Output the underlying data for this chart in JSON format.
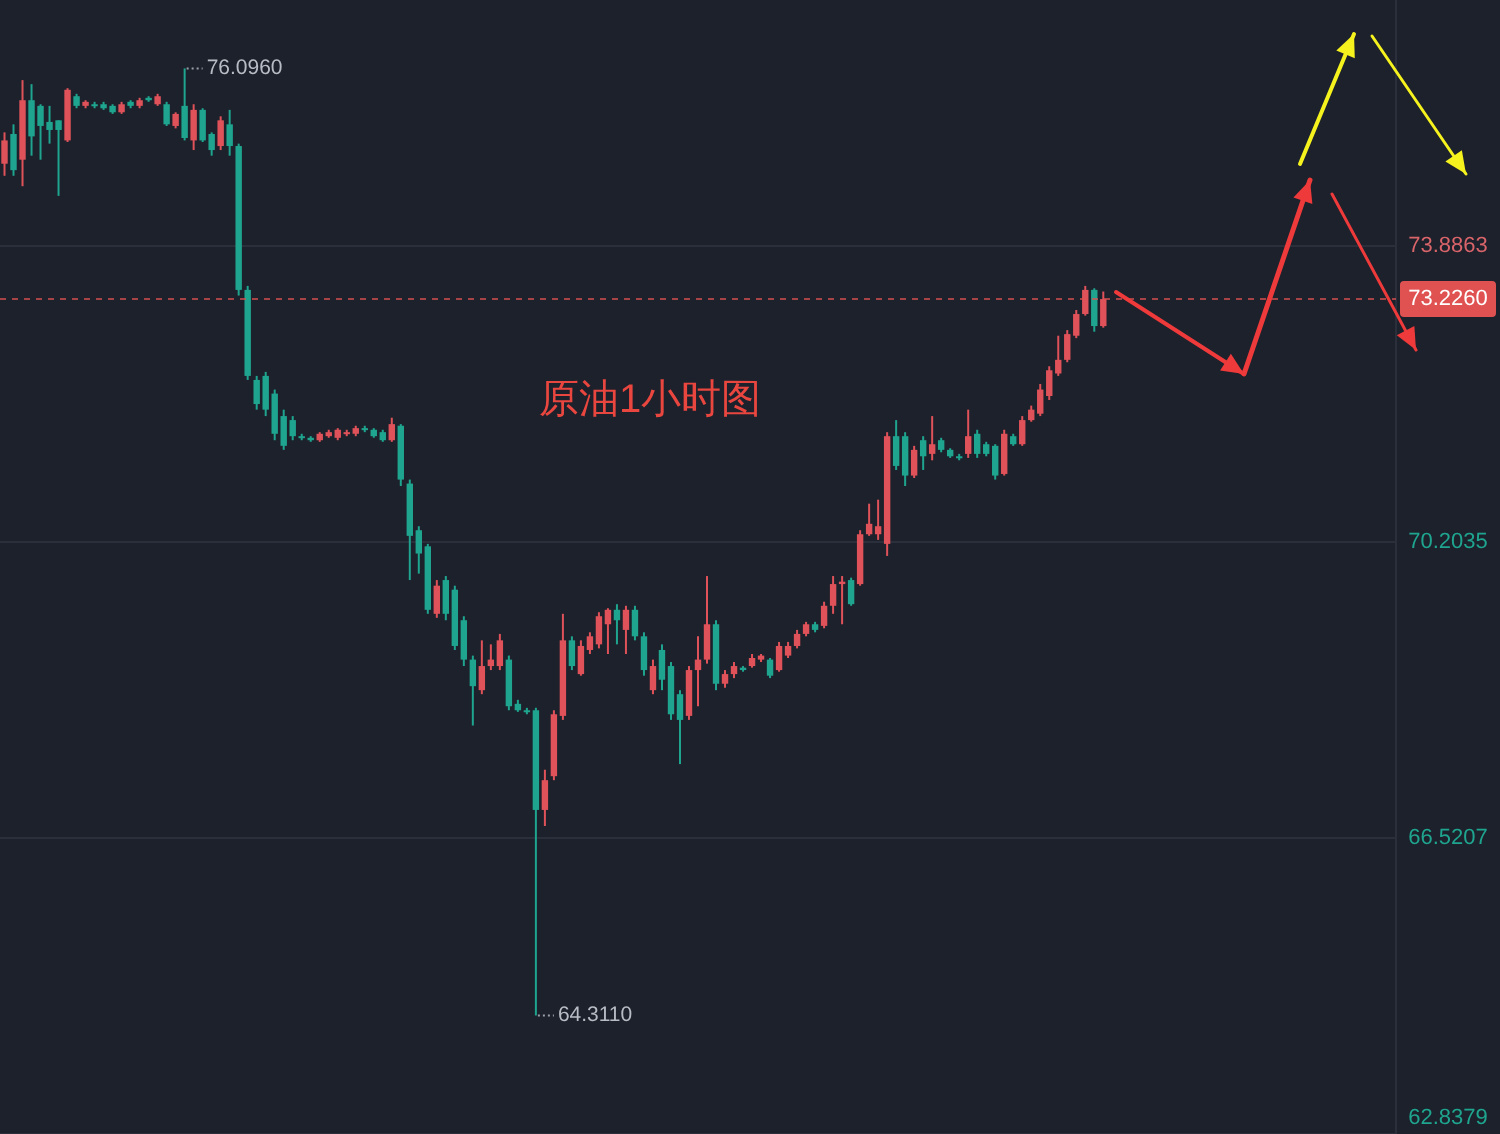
{
  "chart_data": {
    "type": "candlestick",
    "title": "原油1小时图",
    "tick_labels": "y",
    "grid": "y",
    "ylim": [
      62.8379,
      76.947
    ],
    "yticks": [
      62.8379,
      66.5207,
      70.2035,
      73.8863
    ],
    "ref_lines": [
      {
        "axis": "y",
        "value": 73.226,
        "label": "73.2260",
        "color": "#e05252",
        "line_style": "dashed"
      }
    ],
    "annotations": [
      "76.0960",
      "64.3110"
    ],
    "categories": [
      null,
      null,
      null,
      null,
      null,
      null,
      null,
      null,
      null,
      null,
      null,
      null,
      null,
      null,
      null,
      null,
      null,
      null,
      null,
      null,
      null,
      null,
      null,
      null,
      null,
      null,
      null,
      null,
      null,
      null,
      null,
      null,
      null,
      null,
      null,
      null,
      null,
      null,
      null,
      null,
      null,
      null,
      null,
      null,
      null,
      null,
      null,
      null,
      null,
      null,
      null,
      null,
      null,
      null,
      null,
      null,
      null,
      null,
      null,
      null,
      null,
      null,
      null,
      null,
      null,
      null,
      null,
      null,
      null,
      null,
      null,
      null,
      null,
      null,
      null,
      null,
      null,
      null,
      null,
      null,
      null,
      null,
      null,
      null,
      null,
      null,
      null,
      null,
      null,
      null,
      null,
      null,
      null,
      null,
      null,
      null,
      null,
      null,
      null,
      null,
      null,
      null,
      null,
      null,
      null,
      null,
      null,
      null,
      null,
      null,
      null,
      null,
      null,
      null,
      null,
      null,
      null,
      null,
      null,
      null,
      null,
      null,
      null,
      null,
      null,
      null,
      null,
      null,
      null,
      null,
      null,
      null,
      null,
      null,
      null,
      null,
      null,
      null,
      null,
      null,
      null,
      null,
      null,
      null,
      null,
      null,
      null,
      null,
      null,
      null,
      null,
      null,
      null,
      null,
      null
    ],
    "ohlc": [
      [
        74.91,
        75.3,
        74.76,
        75.2
      ],
      [
        75.28,
        75.4,
        74.76,
        74.83
      ],
      [
        74.96,
        75.95,
        74.63,
        75.7
      ],
      [
        75.7,
        75.9,
        75.01,
        75.25
      ],
      [
        75.63,
        75.65,
        74.96,
        75.38
      ],
      [
        75.43,
        75.63,
        75.16,
        75.33
      ],
      [
        75.45,
        75.45,
        74.51,
        75.33
      ],
      [
        75.2,
        75.85,
        75.18,
        75.83
      ],
      [
        75.75,
        75.78,
        75.6,
        75.63
      ],
      [
        75.63,
        75.7,
        75.6,
        75.68
      ],
      [
        75.65,
        75.68,
        75.6,
        75.63
      ],
      [
        75.65,
        75.68,
        75.58,
        75.6
      ],
      [
        75.63,
        75.65,
        75.53,
        75.55
      ],
      [
        75.55,
        75.68,
        75.53,
        75.65
      ],
      [
        75.68,
        75.7,
        75.6,
        75.63
      ],
      [
        75.63,
        75.73,
        75.6,
        75.7
      ],
      [
        75.73,
        75.75,
        75.68,
        75.7
      ],
      [
        75.65,
        75.78,
        75.63,
        75.75
      ],
      [
        75.65,
        75.68,
        75.38,
        75.4
      ],
      [
        75.38,
        75.55,
        75.35,
        75.53
      ],
      [
        75.63,
        76.096,
        75.2,
        75.23
      ],
      [
        75.2,
        75.65,
        75.08,
        75.58
      ],
      [
        75.58,
        75.6,
        75.18,
        75.2
      ],
      [
        75.28,
        75.3,
        75.01,
        75.08
      ],
      [
        75.13,
        75.5,
        75.08,
        75.45
      ],
      [
        75.4,
        75.58,
        75.01,
        75.13
      ],
      [
        75.13,
        75.16,
        73.27,
        73.34
      ],
      [
        73.34,
        73.39,
        72.22,
        72.27
      ],
      [
        72.22,
        72.27,
        71.85,
        71.92
      ],
      [
        72.27,
        72.32,
        71.77,
        71.85
      ],
      [
        72.05,
        72.1,
        71.47,
        71.55
      ],
      [
        71.77,
        71.85,
        71.35,
        71.4
      ],
      [
        71.72,
        71.77,
        71.47,
        71.52
      ],
      [
        71.52,
        71.55,
        71.47,
        71.5
      ],
      [
        71.5,
        71.52,
        71.45,
        71.47
      ],
      [
        71.47,
        71.57,
        71.45,
        71.55
      ],
      [
        71.52,
        71.6,
        71.5,
        71.57
      ],
      [
        71.5,
        71.62,
        71.47,
        71.6
      ],
      [
        71.55,
        71.6,
        71.52,
        71.57
      ],
      [
        71.55,
        71.65,
        71.52,
        71.62
      ],
      [
        71.62,
        71.65,
        71.57,
        71.6
      ],
      [
        71.6,
        71.62,
        71.5,
        71.52
      ],
      [
        71.57,
        71.6,
        71.45,
        71.47
      ],
      [
        71.47,
        71.75,
        71.45,
        71.67
      ],
      [
        71.65,
        71.67,
        70.9,
        70.98
      ],
      [
        70.93,
        70.98,
        69.73,
        70.28
      ],
      [
        70.35,
        70.4,
        69.81,
        70.06
      ],
      [
        70.15,
        70.18,
        69.31,
        69.36
      ],
      [
        69.31,
        69.73,
        69.26,
        69.66
      ],
      [
        69.73,
        69.78,
        69.23,
        69.31
      ],
      [
        69.61,
        69.66,
        68.86,
        68.91
      ],
      [
        69.23,
        69.28,
        68.66,
        68.74
      ],
      [
        68.74,
        68.79,
        67.92,
        68.41
      ],
      [
        68.36,
        68.98,
        68.31,
        68.66
      ],
      [
        68.66,
        68.93,
        68.61,
        68.74
      ],
      [
        68.66,
        69.06,
        68.61,
        68.98
      ],
      [
        68.74,
        68.79,
        68.11,
        68.16
      ],
      [
        68.19,
        68.24,
        68.09,
        68.11
      ],
      [
        68.11,
        68.14,
        68.06,
        68.09
      ],
      [
        68.11,
        68.14,
        64.311,
        66.87
      ],
      [
        66.87,
        67.37,
        66.67,
        67.24
      ],
      [
        67.29,
        68.11,
        67.24,
        68.06
      ],
      [
        68.04,
        69.31,
        67.99,
        68.98
      ],
      [
        68.98,
        69.03,
        68.61,
        68.66
      ],
      [
        68.56,
        68.98,
        68.54,
        68.91
      ],
      [
        68.86,
        69.08,
        68.81,
        69.03
      ],
      [
        68.93,
        69.33,
        68.88,
        69.28
      ],
      [
        69.18,
        69.38,
        68.81,
        69.36
      ],
      [
        69.36,
        69.43,
        68.93,
        69.23
      ],
      [
        69.11,
        69.41,
        68.81,
        69.36
      ],
      [
        69.36,
        69.41,
        68.98,
        69.03
      ],
      [
        69.03,
        69.08,
        68.54,
        68.61
      ],
      [
        68.36,
        68.74,
        68.31,
        68.66
      ],
      [
        68.86,
        68.93,
        68.36,
        68.49
      ],
      [
        68.66,
        68.71,
        67.99,
        68.06
      ],
      [
        68.31,
        68.36,
        67.44,
        67.99
      ],
      [
        68.04,
        68.66,
        67.99,
        68.61
      ],
      [
        68.61,
        69.03,
        68.16,
        68.74
      ],
      [
        68.74,
        69.78,
        68.69,
        69.18
      ],
      [
        69.18,
        69.23,
        68.36,
        68.44
      ],
      [
        68.44,
        68.61,
        68.39,
        68.56
      ],
      [
        68.56,
        68.71,
        68.51,
        68.66
      ],
      [
        68.64,
        68.66,
        68.59,
        68.61
      ],
      [
        68.66,
        68.81,
        68.64,
        68.76
      ],
      [
        68.74,
        68.81,
        68.71,
        68.79
      ],
      [
        68.74,
        68.76,
        68.51,
        68.54
      ],
      [
        68.61,
        68.96,
        68.59,
        68.91
      ],
      [
        68.79,
        68.96,
        68.76,
        68.91
      ],
      [
        68.91,
        69.11,
        68.88,
        69.06
      ],
      [
        69.06,
        69.21,
        69.03,
        69.18
      ],
      [
        69.18,
        69.21,
        69.08,
        69.11
      ],
      [
        69.16,
        69.46,
        69.13,
        69.41
      ],
      [
        69.41,
        69.78,
        69.31,
        69.68
      ],
      [
        69.68,
        69.78,
        69.18,
        69.71
      ],
      [
        69.73,
        69.76,
        69.41,
        69.43
      ],
      [
        69.68,
        70.35,
        69.66,
        70.3
      ],
      [
        70.3,
        70.68,
        70.28,
        70.43
      ],
      [
        70.3,
        70.73,
        70.23,
        70.4
      ],
      [
        70.18,
        71.57,
        70.03,
        71.52
      ],
      [
        71.52,
        71.72,
        71.1,
        71.15
      ],
      [
        71.52,
        71.57,
        70.9,
        71.03
      ],
      [
        71.03,
        71.4,
        71.0,
        71.35
      ],
      [
        71.47,
        71.52,
        71.1,
        71.27
      ],
      [
        71.3,
        71.77,
        71.22,
        71.42
      ],
      [
        71.47,
        71.5,
        71.32,
        71.35
      ],
      [
        71.35,
        71.37,
        71.25,
        71.27
      ],
      [
        71.27,
        71.3,
        71.22,
        71.25
      ],
      [
        71.3,
        71.85,
        71.25,
        71.52
      ],
      [
        71.55,
        71.6,
        71.25,
        71.3
      ],
      [
        71.42,
        71.45,
        71.27,
        71.3
      ],
      [
        71.4,
        71.42,
        70.98,
        71.03
      ],
      [
        71.05,
        71.6,
        71.03,
        71.55
      ],
      [
        71.52,
        71.55,
        71.4,
        71.42
      ],
      [
        71.42,
        71.77,
        71.4,
        71.72
      ],
      [
        71.72,
        71.9,
        71.7,
        71.85
      ],
      [
        71.8,
        72.17,
        71.77,
        72.1
      ],
      [
        72.02,
        72.39,
        71.97,
        72.34
      ],
      [
        72.3,
        72.77,
        72.27,
        72.47
      ],
      [
        72.47,
        72.84,
        72.44,
        72.79
      ],
      [
        72.77,
        73.09,
        72.74,
        73.04
      ],
      [
        73.04,
        73.39,
        73.02,
        73.34
      ],
      [
        73.34,
        73.36,
        72.82,
        72.89
      ],
      [
        72.89,
        73.32,
        72.87,
        73.226
      ],
      null,
      null,
      null,
      null,
      null,
      null,
      null,
      null,
      null,
      null,
      null,
      null,
      null,
      null,
      null,
      null,
      null,
      null,
      null,
      null,
      null,
      null,
      null,
      null,
      null,
      null,
      null,
      null,
      null,
      null,
      null,
      null
    ]
  }
}
